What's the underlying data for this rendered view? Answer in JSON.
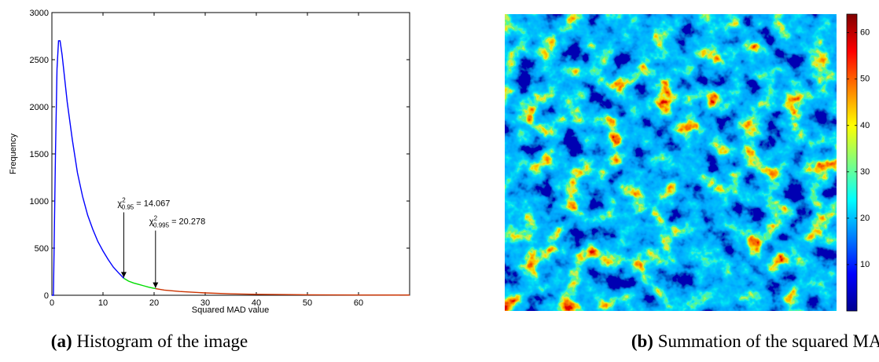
{
  "chart_data": [
    {
      "type": "line",
      "xlabel": "Squared MAD value",
      "ylabel": "Frequency",
      "xlim": [
        0,
        70
      ],
      "ylim": [
        0,
        3000
      ],
      "xticks": [
        0,
        10,
        20,
        30,
        40,
        50,
        60
      ],
      "yticks": [
        0,
        500,
        1000,
        1500,
        2000,
        2500,
        3000
      ],
      "series": [
        {
          "color": "#0000ff",
          "x": [
            0,
            0.3,
            0.7,
            1,
            1.3,
            1.6,
            2,
            3,
            4,
            5,
            6,
            7,
            8,
            9,
            10,
            11,
            12,
            13,
            14.067
          ],
          "values": [
            0,
            0,
            1500,
            2400,
            2700,
            2700,
            2550,
            2050,
            1650,
            1300,
            1050,
            850,
            700,
            570,
            470,
            380,
            300,
            240,
            180
          ]
        },
        {
          "color": "#00dd00",
          "x": [
            14.067,
            15,
            16,
            17,
            18,
            19,
            20.278
          ],
          "values": [
            180,
            150,
            130,
            115,
            100,
            85,
            70
          ]
        },
        {
          "color": "#cc3300",
          "x": [
            20.278,
            22,
            25,
            30,
            35,
            40,
            50,
            60,
            70
          ],
          "values": [
            70,
            55,
            40,
            25,
            15,
            10,
            5,
            3,
            2
          ]
        }
      ],
      "annotations": [
        {
          "symbol": "χ",
          "sup": "2",
          "sub": "0.95",
          "text": "= 14.067",
          "x": 14.067,
          "y": 180
        },
        {
          "symbol": "χ",
          "sup": "2",
          "sub": "0.995",
          "text": "= 20.278",
          "x": 20.278,
          "y": 70
        }
      ],
      "caption": {
        "label": "(a)",
        "text": "Histogram of the image"
      }
    },
    {
      "type": "heatmap",
      "clim": [
        0,
        64
      ],
      "cticks": [
        10,
        20,
        30,
        40,
        50,
        60
      ],
      "caption": {
        "label": "(b)",
        "text": "Summation of the squared MADs"
      }
    }
  ]
}
